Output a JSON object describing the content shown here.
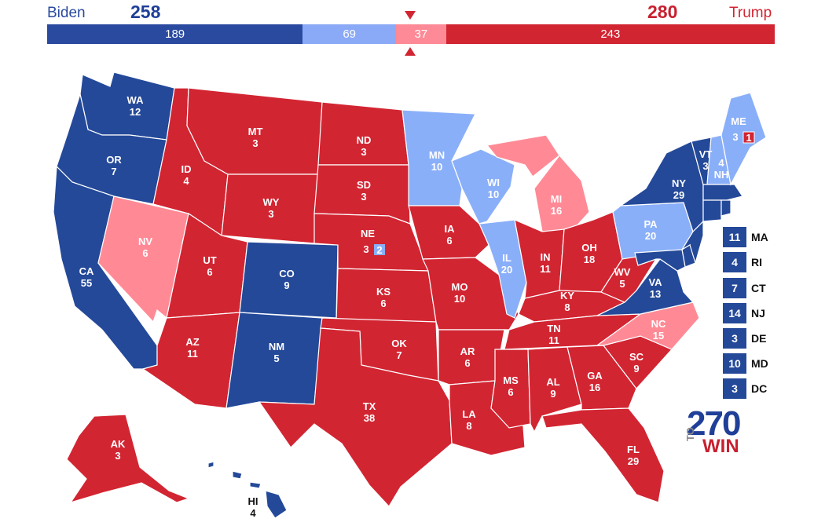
{
  "header": {
    "biden_name": "Biden",
    "trump_name": "Trump",
    "biden_total": "258",
    "trump_total": "280"
  },
  "bar": [
    {
      "label": "189",
      "color": "#2a4aa0",
      "value": 189
    },
    {
      "label": "69",
      "color": "#8aa9f7",
      "value": 69
    },
    {
      "label": "37",
      "color": "#fd8a96",
      "value": 37
    },
    {
      "label": "243",
      "color": "#d22532",
      "value": 243
    }
  ],
  "colors": {
    "safe_dem": "#244999",
    "lean_dem": "#8aaff9",
    "lean_rep": "#ff8a96",
    "safe_rep": "#d22532",
    "threshold_marker": "#d22532"
  },
  "states": {
    "WA": {
      "abbr": "WA",
      "ev": "12"
    },
    "OR": {
      "abbr": "OR",
      "ev": "7"
    },
    "CA": {
      "abbr": "CA",
      "ev": "55"
    },
    "NV": {
      "abbr": "NV",
      "ev": "6"
    },
    "ID": {
      "abbr": "ID",
      "ev": "4"
    },
    "MT": {
      "abbr": "MT",
      "ev": "3"
    },
    "WY": {
      "abbr": "WY",
      "ev": "3"
    },
    "UT": {
      "abbr": "UT",
      "ev": "6"
    },
    "AZ": {
      "abbr": "AZ",
      "ev": "11"
    },
    "CO": {
      "abbr": "CO",
      "ev": "9"
    },
    "NM": {
      "abbr": "NM",
      "ev": "5"
    },
    "ND": {
      "abbr": "ND",
      "ev": "3"
    },
    "SD": {
      "abbr": "SD",
      "ev": "3"
    },
    "NE": {
      "abbr": "NE",
      "ev": "3",
      "ev2": "2"
    },
    "KS": {
      "abbr": "KS",
      "ev": "6"
    },
    "OK": {
      "abbr": "OK",
      "ev": "7"
    },
    "TX": {
      "abbr": "TX",
      "ev": "38"
    },
    "MN": {
      "abbr": "MN",
      "ev": "10"
    },
    "IA": {
      "abbr": "IA",
      "ev": "6"
    },
    "MO": {
      "abbr": "MO",
      "ev": "10"
    },
    "AR": {
      "abbr": "AR",
      "ev": "6"
    },
    "LA": {
      "abbr": "LA",
      "ev": "8"
    },
    "WI": {
      "abbr": "WI",
      "ev": "10"
    },
    "IL": {
      "abbr": "IL",
      "ev": "20"
    },
    "MI": {
      "abbr": "MI",
      "ev": "16"
    },
    "IN": {
      "abbr": "IN",
      "ev": "11"
    },
    "OH": {
      "abbr": "OH",
      "ev": "18"
    },
    "KY": {
      "abbr": "KY",
      "ev": "8"
    },
    "TN": {
      "abbr": "TN",
      "ev": "11"
    },
    "MS": {
      "abbr": "MS",
      "ev": "6"
    },
    "AL": {
      "abbr": "AL",
      "ev": "9"
    },
    "GA": {
      "abbr": "GA",
      "ev": "16"
    },
    "FL": {
      "abbr": "FL",
      "ev": "29"
    },
    "SC": {
      "abbr": "SC",
      "ev": "9"
    },
    "NC": {
      "abbr": "NC",
      "ev": "15"
    },
    "VA": {
      "abbr": "VA",
      "ev": "13"
    },
    "WV": {
      "abbr": "WV",
      "ev": "5"
    },
    "PA": {
      "abbr": "PA",
      "ev": "20"
    },
    "NY": {
      "abbr": "NY",
      "ev": "29"
    },
    "VT": {
      "abbr": "VT",
      "ev": "3"
    },
    "NH": {
      "abbr": "NH",
      "ev": "4"
    },
    "ME": {
      "abbr": "ME",
      "ev": "3",
      "ev2": "1"
    },
    "AK": {
      "abbr": "AK",
      "ev": "3"
    },
    "HI": {
      "abbr": "HI",
      "ev": "4"
    }
  },
  "legend": [
    {
      "ev": "11",
      "abbr": "MA"
    },
    {
      "ev": "4",
      "abbr": "RI"
    },
    {
      "ev": "7",
      "abbr": "CT"
    },
    {
      "ev": "14",
      "abbr": "NJ"
    },
    {
      "ev": "3",
      "abbr": "DE"
    },
    {
      "ev": "10",
      "abbr": "MD"
    },
    {
      "ev": "3",
      "abbr": "DC"
    }
  ],
  "logo": {
    "number": "270",
    "to": "TO",
    "win": "WIN"
  }
}
